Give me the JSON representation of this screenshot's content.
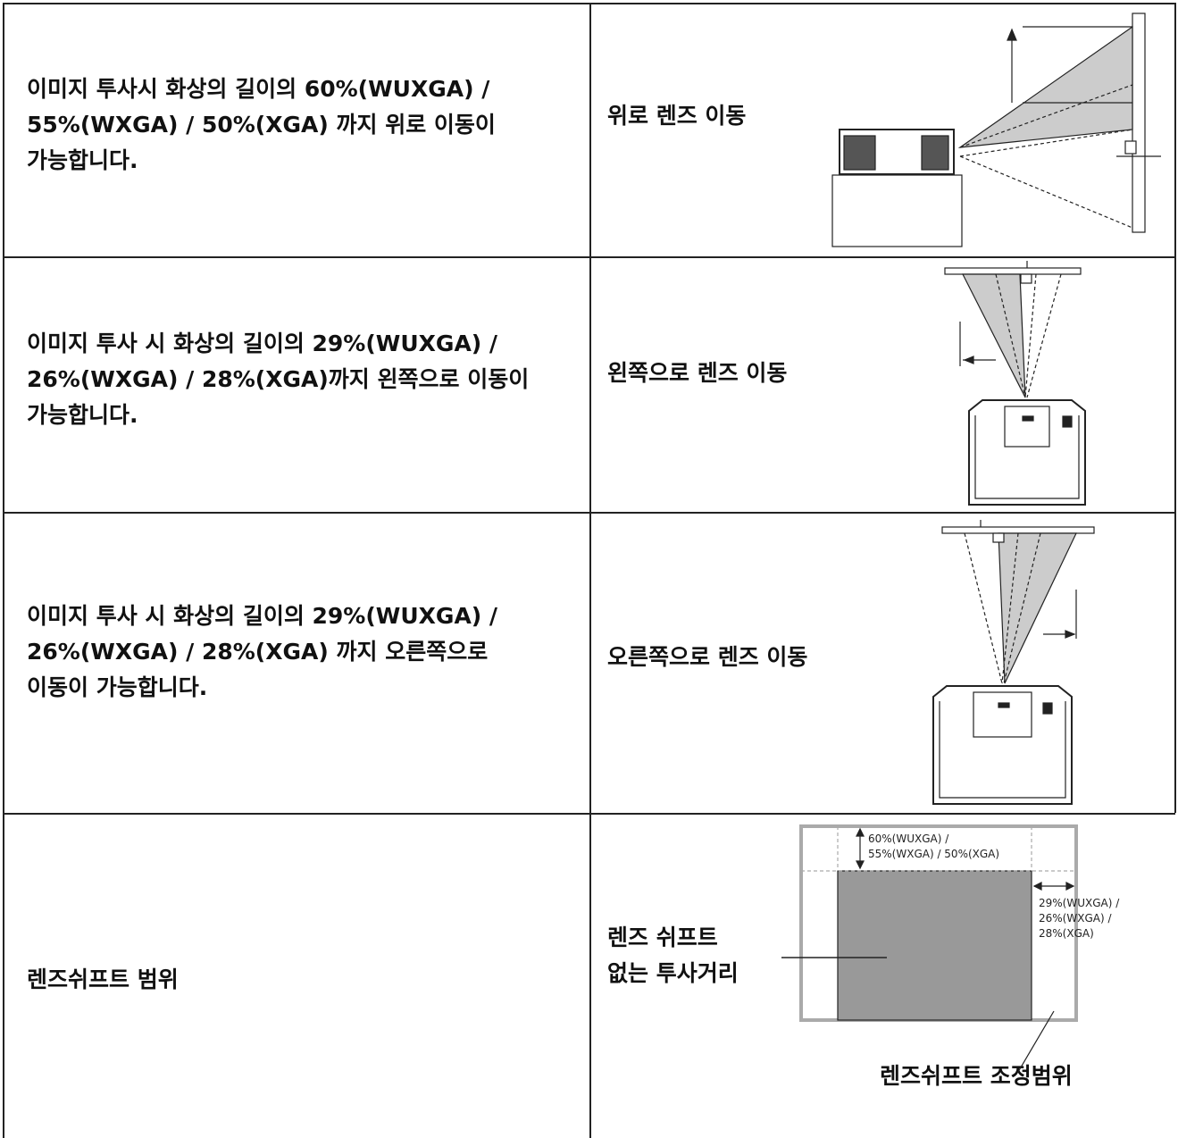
{
  "rows": [
    {
      "description": [
        "이미지 투사시 화상의 길이의 60%(WUXGA) /",
        "55%(WXGA) / 50%(XGA) 까지 위로 이동이",
        "가능합니다."
      ],
      "label": "위로 렌즈 이동"
    },
    {
      "description": [
        "이미지 투사 시 화상의 길이의 29%(WUXGA) /",
        "26%(WXGA) / 28%(XGA)까지 왼쪽으로 이동이",
        "가능합니다."
      ],
      "label": "왼쪽으로 렌즈 이동"
    },
    {
      "description": [
        "이미지 투사 시 화상의 길이의 29%(WUXGA) /",
        "26%(WXGA) / 28%(XGA) 까지 오른쪽으로",
        "이동이 가능합니다."
      ],
      "label": "오른쪽으로 렌즈 이동"
    },
    {
      "description": [
        "렌즈쉬프트 범위"
      ],
      "diagram": {
        "vertical_range": [
          "60%(WUXGA) /",
          "55%(WXGA) / 50%(XGA)"
        ],
        "horizontal_range": [
          "29%(WUXGA) /",
          "26%(WXGA) /",
          "28%(XGA)"
        ],
        "no_shift_label": [
          "렌즈 쉬프트",
          "없는 투사거리"
        ],
        "range_label": "렌즈쉬프트 조정범위"
      }
    }
  ]
}
